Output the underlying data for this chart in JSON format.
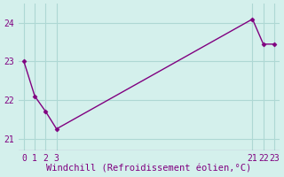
{
  "x": [
    0,
    1,
    2,
    3,
    21,
    22,
    23
  ],
  "y": [
    23.0,
    22.1,
    21.7,
    21.25,
    24.1,
    23.45,
    23.45
  ],
  "line_color": "#800080",
  "marker": "D",
  "marker_size": 2.5,
  "bg_color": "#d4f0ec",
  "grid_color": "#aed8d4",
  "xlabel": "Windchill (Refroidissement éolien,°C)",
  "xlabel_color": "#800080",
  "xlabel_fontsize": 7.5,
  "tick_color": "#800080",
  "tick_fontsize": 7,
  "xlim": [
    -0.5,
    23.5
  ],
  "ylim": [
    20.7,
    24.5
  ],
  "xticks": [
    0,
    1,
    2,
    3,
    21,
    22,
    23
  ],
  "yticks": [
    21,
    22,
    23,
    24
  ],
  "linewidth": 1.0
}
